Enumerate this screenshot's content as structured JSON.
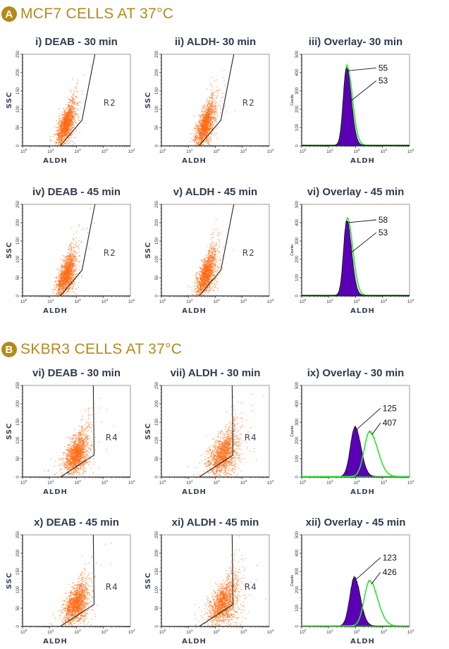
{
  "sections": [
    {
      "badge": "A",
      "title": "MCF7 CELLS AT 37°C"
    },
    {
      "badge": "B",
      "title": "SKBR3 CELLS AT 37°C"
    }
  ],
  "colors": {
    "header": "#b58a1c",
    "events": "#ff6a13",
    "deab_hist": "#5a00b5",
    "aldh_hist": "#33e033",
    "gate": "#222222"
  },
  "chart_data": [
    {
      "type": "scatter",
      "title": "i) DEAB - 30 min",
      "xlabel": "ALDH",
      "ylabel": "SSC",
      "xscale": "log",
      "xlim": [
        1,
        10000
      ],
      "ylim": [
        0,
        250
      ],
      "xticks": [
        "10",
        "10",
        "10",
        "10",
        "10"
      ],
      "xtick_exp": [
        "0",
        "1",
        "2",
        "3",
        "4"
      ],
      "yticks": [
        "0",
        "50",
        "100",
        "150",
        "200",
        "250"
      ],
      "gate": {
        "label": "R2",
        "vertices": [
          [
            25,
            0
          ],
          [
            160,
            70
          ],
          [
            500,
            255
          ],
          [
            10000,
            255
          ]
        ],
        "label_at": [
          1000,
          110
        ]
      },
      "population": {
        "center_aldh": 40,
        "center_ssc": 60,
        "spread_log": 0.17,
        "spread_ssc": 20,
        "slope": 110,
        "events": 1500
      }
    },
    {
      "type": "scatter",
      "title": "ii) ALDH- 30 min",
      "xlabel": "ALDH",
      "ylabel": "SSC",
      "xscale": "log",
      "xlim": [
        1,
        10000
      ],
      "ylim": [
        0,
        250
      ],
      "xticks": [
        "10",
        "10",
        "10",
        "10",
        "10"
      ],
      "xtick_exp": [
        "0",
        "1",
        "2",
        "3",
        "4"
      ],
      "yticks": [
        "0",
        "50",
        "100",
        "150",
        "200",
        "250"
      ],
      "gate": {
        "label": "R2",
        "vertices": [
          [
            25,
            0
          ],
          [
            160,
            70
          ],
          [
            500,
            255
          ],
          [
            10000,
            255
          ]
        ],
        "label_at": [
          1000,
          110
        ]
      },
      "population": {
        "center_aldh": 42,
        "center_ssc": 60,
        "spread_log": 0.18,
        "spread_ssc": 22,
        "slope": 110,
        "events": 1500
      }
    },
    {
      "type": "histogram",
      "title": "iii) Overlay- 30 min",
      "xlabel": "ALDH",
      "ylabel": "Counts",
      "xscale": "log",
      "xlim": [
        1,
        10000
      ],
      "ylim": [
        0,
        500
      ],
      "xticks": [
        "10",
        "10",
        "10",
        "10",
        "10"
      ],
      "xtick_exp": [
        "0",
        "1",
        "2",
        "3",
        "4"
      ],
      "yticks": [
        "0",
        "100",
        "200",
        "300",
        "400",
        "500"
      ],
      "series": [
        {
          "color": "#33e033",
          "fill": false,
          "peak_aldh": 48,
          "peak_count": 435,
          "width_left": 0.13,
          "width_right": 0.2
        },
        {
          "color": "#5a00b5",
          "fill": true,
          "peak_aldh": 46,
          "peak_count": 425,
          "width_left": 0.12,
          "width_right": 0.18
        }
      ],
      "annotations": [
        {
          "text": "55",
          "at": [
            700,
            410
          ],
          "target": [
            50,
            410
          ]
        },
        {
          "text": "53",
          "at": [
            700,
            340
          ],
          "target": [
            60,
            240
          ]
        }
      ]
    },
    {
      "type": "scatter",
      "title": "iv) DEAB - 45 min",
      "xlabel": "ALDH",
      "ylabel": "SSC",
      "xscale": "log",
      "xlim": [
        1,
        10000
      ],
      "ylim": [
        0,
        250
      ],
      "xticks": [
        "10",
        "10",
        "10",
        "10",
        "10"
      ],
      "xtick_exp": [
        "0",
        "1",
        "2",
        "3",
        "4"
      ],
      "yticks": [
        "0",
        "50",
        "100",
        "150",
        "200",
        "250"
      ],
      "gate": {
        "label": "R2",
        "vertices": [
          [
            25,
            0
          ],
          [
            160,
            70
          ],
          [
            500,
            255
          ],
          [
            10000,
            255
          ]
        ],
        "label_at": [
          1000,
          110
        ]
      },
      "population": {
        "center_aldh": 42,
        "center_ssc": 60,
        "spread_log": 0.18,
        "spread_ssc": 22,
        "slope": 110,
        "events": 1500
      }
    },
    {
      "type": "scatter",
      "title": "v) ALDH - 45 min",
      "xlabel": "ALDH",
      "ylabel": "SSC",
      "xscale": "log",
      "xlim": [
        1,
        10000
      ],
      "ylim": [
        0,
        250
      ],
      "xticks": [
        "10",
        "10",
        "10",
        "10",
        "10"
      ],
      "xtick_exp": [
        "0",
        "1",
        "2",
        "3",
        "4"
      ],
      "yticks": [
        "0",
        "50",
        "100",
        "150",
        "200",
        "250"
      ],
      "gate": {
        "label": "R2",
        "vertices": [
          [
            25,
            0
          ],
          [
            160,
            70
          ],
          [
            500,
            255
          ],
          [
            10000,
            255
          ]
        ],
        "label_at": [
          1000,
          110
        ]
      },
      "population": {
        "center_aldh": 45,
        "center_ssc": 60,
        "spread_log": 0.18,
        "spread_ssc": 22,
        "slope": 110,
        "events": 1500
      }
    },
    {
      "type": "histogram",
      "title": "vi) Overlay - 45 min",
      "xlabel": "ALDH",
      "ylabel": "Counts",
      "xscale": "log",
      "xlim": [
        1,
        10000
      ],
      "ylim": [
        0,
        500
      ],
      "xticks": [
        "10",
        "10",
        "10",
        "10",
        "10"
      ],
      "xtick_exp": [
        "0",
        "1",
        "2",
        "3",
        "4"
      ],
      "yticks": [
        "0",
        "100",
        "200",
        "300",
        "400",
        "500"
      ],
      "series": [
        {
          "color": "#33e033",
          "fill": false,
          "peak_aldh": 50,
          "peak_count": 420,
          "width_left": 0.13,
          "width_right": 0.2
        },
        {
          "color": "#5a00b5",
          "fill": true,
          "peak_aldh": 47,
          "peak_count": 410,
          "width_left": 0.12,
          "width_right": 0.18
        }
      ],
      "annotations": [
        {
          "text": "58",
          "at": [
            700,
            400
          ],
          "target": [
            50,
            400
          ]
        },
        {
          "text": "53",
          "at": [
            700,
            330
          ],
          "target": [
            60,
            230
          ]
        }
      ]
    },
    {
      "type": "scatter",
      "title": "vi) DEAB - 30 min",
      "xlabel": "ALDH",
      "ylabel": "SSC",
      "xscale": "log",
      "xlim": [
        1,
        10000
      ],
      "ylim": [
        0,
        250
      ],
      "xticks": [
        "10",
        "10",
        "10",
        "10",
        "10"
      ],
      "xtick_exp": [
        "0",
        "1",
        "2",
        "3",
        "4"
      ],
      "yticks": [
        "0",
        "50",
        "100",
        "150",
        "200",
        "250"
      ],
      "gate": {
        "label": "R4",
        "vertices": [
          [
            25,
            0
          ],
          [
            450,
            60
          ],
          [
            420,
            255
          ],
          [
            10000,
            255
          ]
        ],
        "label_at": [
          1200,
          100
        ]
      },
      "population": {
        "center_aldh": 100,
        "center_ssc": 65,
        "spread_log": 0.22,
        "spread_ssc": 22,
        "slope": 60,
        "events": 1500
      }
    },
    {
      "type": "scatter",
      "title": "vii) ALDH - 30 min",
      "xlabel": "ALDH",
      "ylabel": "SSC",
      "xscale": "log",
      "xlim": [
        1,
        10000
      ],
      "ylim": [
        0,
        250
      ],
      "xticks": [
        "10",
        "10",
        "10",
        "10",
        "10"
      ],
      "xtick_exp": [
        "0",
        "1",
        "2",
        "3",
        "4"
      ],
      "yticks": [
        "0",
        "50",
        "100",
        "150",
        "200",
        "250"
      ],
      "gate": {
        "label": "R4",
        "vertices": [
          [
            25,
            0
          ],
          [
            450,
            60
          ],
          [
            420,
            255
          ],
          [
            10000,
            255
          ]
        ],
        "label_at": [
          1200,
          100
        ]
      },
      "population": {
        "center_aldh": 200,
        "center_ssc": 65,
        "spread_log": 0.28,
        "spread_ssc": 25,
        "slope": 50,
        "events": 1500
      }
    },
    {
      "type": "histogram",
      "title": "ix) Overlay - 30 min",
      "xlabel": "ALDH",
      "ylabel": "Counts",
      "xscale": "log",
      "xlim": [
        1,
        10000
      ],
      "ylim": [
        0,
        500
      ],
      "xticks": [
        "10",
        "10",
        "10",
        "10",
        "10"
      ],
      "xtick_exp": [
        "0",
        "1",
        "2",
        "3",
        "4"
      ],
      "yticks": [
        "0",
        "100",
        "200",
        "300",
        "400",
        "500"
      ],
      "series": [
        {
          "color": "#5a00b5",
          "fill": true,
          "peak_aldh": 95,
          "peak_count": 270,
          "width_left": 0.17,
          "width_right": 0.22
        },
        {
          "color": "#33e033",
          "fill": false,
          "peak_aldh": 330,
          "peak_count": 245,
          "width_left": 0.2,
          "width_right": 0.3
        }
      ],
      "annotations": [
        {
          "text": "125",
          "at": [
            1000,
            360
          ],
          "target": [
            110,
            260
          ]
        },
        {
          "text": "407",
          "at": [
            1000,
            280
          ],
          "target": [
            400,
            230
          ]
        }
      ]
    },
    {
      "type": "scatter",
      "title": "x) DEAB - 45 min",
      "xlabel": "ALDH",
      "ylabel": "SSC",
      "xscale": "log",
      "xlim": [
        1,
        10000
      ],
      "ylim": [
        0,
        250
      ],
      "xticks": [
        "10",
        "10",
        "10",
        "10",
        "10"
      ],
      "xtick_exp": [
        "0",
        "1",
        "2",
        "3",
        "4"
      ],
      "yticks": [
        "0",
        "50",
        "100",
        "150",
        "200",
        "250"
      ],
      "gate": {
        "label": "R4",
        "vertices": [
          [
            25,
            0
          ],
          [
            450,
            60
          ],
          [
            420,
            255
          ],
          [
            10000,
            255
          ]
        ],
        "label_at": [
          1200,
          100
        ]
      },
      "population": {
        "center_aldh": 100,
        "center_ssc": 65,
        "spread_log": 0.22,
        "spread_ssc": 22,
        "slope": 60,
        "events": 1500
      }
    },
    {
      "type": "scatter",
      "title": "xi) ALDH - 45 min",
      "xlabel": "ALDH",
      "ylabel": "SSC",
      "xscale": "log",
      "xlim": [
        1,
        10000
      ],
      "ylim": [
        0,
        250
      ],
      "xticks": [
        "10",
        "10",
        "10",
        "10",
        "10"
      ],
      "xtick_exp": [
        "0",
        "1",
        "2",
        "3",
        "4"
      ],
      "yticks": [
        "0",
        "50",
        "100",
        "150",
        "200",
        "250"
      ],
      "gate": {
        "label": "R4",
        "vertices": [
          [
            25,
            0
          ],
          [
            450,
            60
          ],
          [
            420,
            255
          ],
          [
            10000,
            255
          ]
        ],
        "label_at": [
          1200,
          100
        ]
      },
      "population": {
        "center_aldh": 200,
        "center_ssc": 65,
        "spread_log": 0.28,
        "spread_ssc": 25,
        "slope": 50,
        "events": 1500
      }
    },
    {
      "type": "histogram",
      "title": "xii) Overlay - 45 min",
      "xlabel": "ALDH",
      "ylabel": "Counts",
      "xscale": "log",
      "xlim": [
        1,
        10000
      ],
      "ylim": [
        0,
        500
      ],
      "xticks": [
        "10",
        "10",
        "10",
        "10",
        "10"
      ],
      "xtick_exp": [
        "0",
        "1",
        "2",
        "3",
        "4"
      ],
      "yticks": [
        "0",
        "100",
        "200",
        "300",
        "400",
        "500"
      ],
      "series": [
        {
          "color": "#5a00b5",
          "fill": true,
          "peak_aldh": 90,
          "peak_count": 265,
          "width_left": 0.17,
          "width_right": 0.22
        },
        {
          "color": "#33e033",
          "fill": false,
          "peak_aldh": 330,
          "peak_count": 245,
          "width_left": 0.2,
          "width_right": 0.3
        }
      ],
      "annotations": [
        {
          "text": "123",
          "at": [
            1000,
            360
          ],
          "target": [
            110,
            260
          ]
        },
        {
          "text": "426",
          "at": [
            1000,
            280
          ],
          "target": [
            380,
            230
          ]
        }
      ]
    }
  ]
}
